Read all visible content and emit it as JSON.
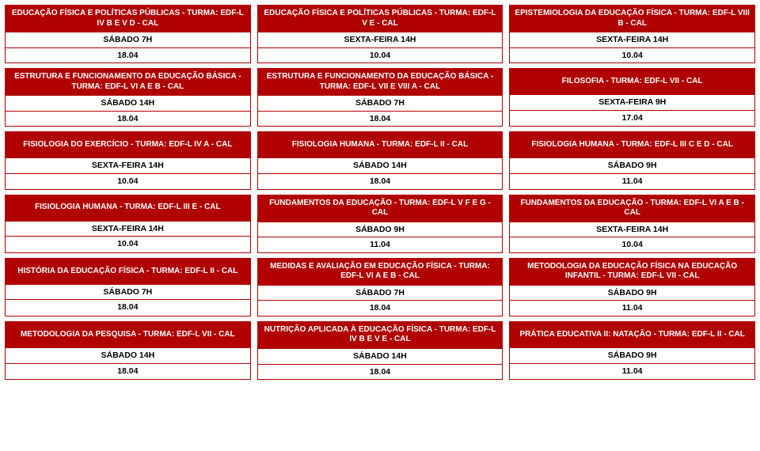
{
  "colors": {
    "primary": "#b00000",
    "text": "#000000",
    "background": "#ffffff"
  },
  "layout": {
    "columns": 3,
    "rows": 6
  },
  "cards": [
    {
      "title": "EDUCAÇÃO FÍSICA E POLÍTICAS PÚBLICAS - TURMA: EDF-L IV B E V D - CAL",
      "day": "SÁBADO 7H",
      "date": "18.04"
    },
    {
      "title": "EDUCAÇÃO FÍSICA E POLÍTICAS PÚBLICAS - TURMA: EDF-L V E - CAL",
      "day": "SEXTA-FEIRA 14H",
      "date": "10.04"
    },
    {
      "title": "EPISTEMIOLOGIA DA EDUCAÇÃO FÍSICA - TURMA: EDF-L VIII B - CAL",
      "day": "SEXTA-FEIRA 14H",
      "date": "10.04"
    },
    {
      "title": "ESTRUTURA E FUNCIONAMENTO DA EDUCAÇÃO BÁSICA - TURMA: EDF-L VI A E B - CAL",
      "day": "SÁBADO 14H",
      "date": "18.04"
    },
    {
      "title": "ESTRUTURA E FUNCIONAMENTO DA EDUCAÇÃO BÁSICA - TURMA: EDF-L VII E VIII A - CAL",
      "day": "SÁBADO 7H",
      "date": "18.04"
    },
    {
      "title": "FILOSOFIA - TURMA: EDF-L VII - CAL",
      "day": "SEXTA-FEIRA 9H",
      "date": "17.04"
    },
    {
      "title": "FISIOLOGIA DO EXERCÍCIO - TURMA: EDF-L IV A - CAL",
      "day": "SEXTA-FEIRA 14H",
      "date": "10.04"
    },
    {
      "title": "FISIOLOGIA HUMANA - TURMA: EDF-L II - CAL",
      "day": "SÁBADO 14H",
      "date": "18.04"
    },
    {
      "title": "FISIOLOGIA HUMANA - TURMA: EDF-L III C E D - CAL",
      "day": "SÁBADO 9H",
      "date": "11.04"
    },
    {
      "title": "FISIOLOGIA HUMANA - TURMA: EDF-L III E - CAL",
      "day": "SEXTA-FEIRA 14H",
      "date": "10.04"
    },
    {
      "title": "FUNDAMENTOS DA EDUCAÇÃO - TURMA: EDF-L V F E G - CAL",
      "day": "SÁBADO 9H",
      "date": "11.04"
    },
    {
      "title": "FUNDAMENTOS DA EDUCAÇÃO - TURMA: EDF-L VI A E B - CAL",
      "day": "SEXTA-FEIRA 14H",
      "date": "10.04"
    },
    {
      "title": "HISTÓRIA DA EDUCAÇÃO FÍSICA - TURMA: EDF-L II - CAL",
      "day": "SÁBADO 7H",
      "date": "18.04"
    },
    {
      "title": "MEDIDAS E AVALIAÇÃO EM EDUCAÇÃO FÍSICA - TURMA: EDF-L VI A E B - CAL",
      "day": "SÁBADO 7H",
      "date": "18.04"
    },
    {
      "title": "METODOLOGIA DA EDUCAÇÃO FÍSICA NA EDUCAÇÃO INFANTIL - TURMA: EDF-L VII - CAL",
      "day": "SÁBADO 9H",
      "date": "11.04"
    },
    {
      "title": "METODOLOGIA DA PESQUISA - TURMA: EDF-L VII - CAL",
      "day": "SÁBADO 14H",
      "date": "18.04"
    },
    {
      "title": "NUTRIÇÃO APLICADA À EDUCAÇÃO FÍSICA - TURMA: EDF-L IV B E V E - CAL",
      "day": "SÁBADO 14H",
      "date": "18.04"
    },
    {
      "title": "PRÁTICA EDUCATIVA II: NATAÇÃO - TURMA: EDF-L II - CAL",
      "day": "SÁBADO 9H",
      "date": "11.04"
    }
  ]
}
